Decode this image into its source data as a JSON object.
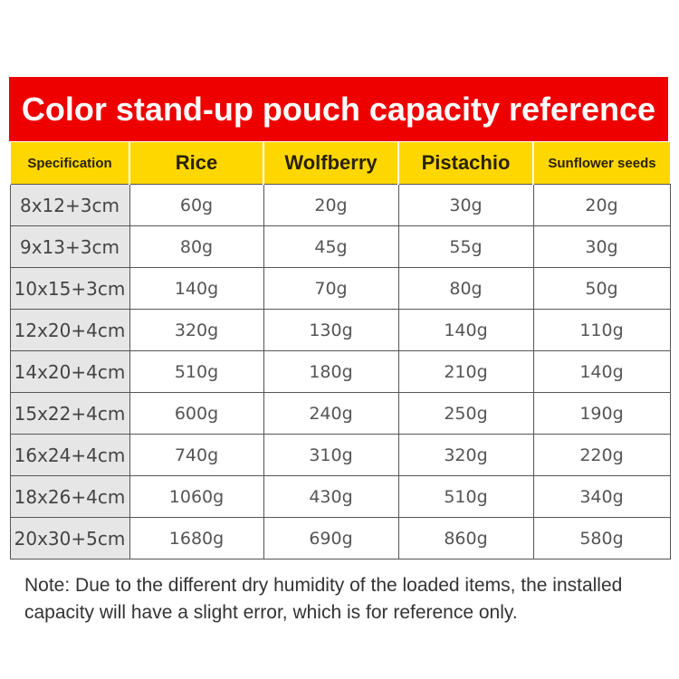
{
  "title": "Color stand-up pouch capacity reference",
  "headers": [
    "Specification",
    "Rice",
    "Wolfberry",
    "Pistachio",
    "Sunflower seeds"
  ],
  "rows": [
    [
      "8x12+3cm",
      "60g",
      "20g",
      "30g",
      "20g"
    ],
    [
      "9x13+3cm",
      "80g",
      "45g",
      "55g",
      "30g"
    ],
    [
      "10x15+3cm",
      "140g",
      "70g",
      "80g",
      "50g"
    ],
    [
      "12x20+4cm",
      "320g",
      "130g",
      "140g",
      "110g"
    ],
    [
      "14x20+4cm",
      "510g",
      "180g",
      "210g",
      "140g"
    ],
    [
      "15x22+4cm",
      "600g",
      "240g",
      "250g",
      "190g"
    ],
    [
      "16x24+4cm",
      "740g",
      "310g",
      "320g",
      "220g"
    ],
    [
      "18x26+4cm",
      "1060g",
      "430g",
      "510g",
      "340g"
    ],
    [
      "20x30+5cm",
      "1680g",
      "690g",
      "860g",
      "580g"
    ]
  ],
  "note": "Note: Due to the different dry humidity of the loaded items, the installed capacity will have a slight error, which is for reference only.",
  "colors": {
    "banner": "#ee0000",
    "header": "#ffd700",
    "spec_column": "#e6e6e6"
  }
}
